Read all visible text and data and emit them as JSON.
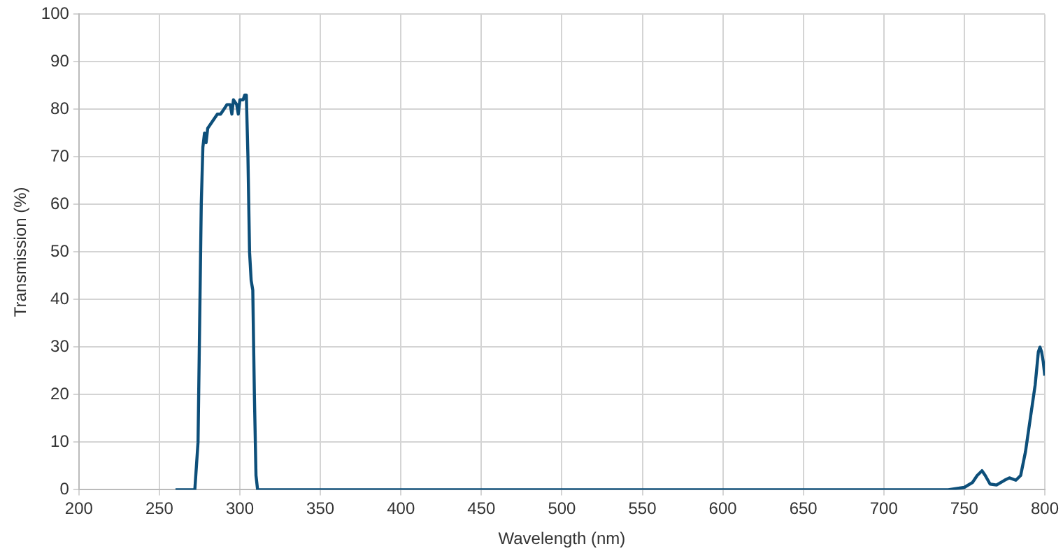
{
  "chart_data": {
    "type": "line",
    "xlabel": "Wavelength (nm)",
    "ylabel": "Transmission (%)",
    "series": [
      {
        "color": "#0d4f7a",
        "x": [
          260,
          272,
          274,
          276,
          277,
          278,
          279,
          280,
          282,
          284,
          286,
          288,
          290,
          292,
          294,
          295,
          296,
          298,
          299,
          300,
          302,
          303,
          304,
          305,
          306,
          307,
          308,
          309,
          310,
          311,
          350,
          400,
          450,
          500,
          550,
          600,
          650,
          700,
          740,
          750,
          755,
          758,
          761,
          763,
          766,
          770,
          775,
          778,
          782,
          785,
          788,
          791,
          794,
          796,
          797,
          798,
          799,
          800
        ],
        "values": [
          0,
          0,
          10,
          60,
          72,
          75,
          73,
          76,
          77,
          78,
          79,
          79,
          80,
          81,
          81,
          79,
          82,
          81,
          79,
          82,
          82,
          83,
          83,
          70,
          50,
          44,
          42,
          20,
          3,
          0,
          0,
          0,
          0,
          0,
          0,
          0,
          0,
          0,
          0,
          0.5,
          1.5,
          3,
          4,
          3,
          1.2,
          1,
          2,
          2.5,
          2,
          3,
          8,
          15,
          22,
          29,
          30,
          29,
          27,
          24
        ]
      }
    ],
    "xlim": [
      200,
      800
    ],
    "xticks": [
      200,
      250,
      300,
      350,
      400,
      450,
      500,
      550,
      600,
      650,
      700,
      750,
      800
    ],
    "ylim": [
      0,
      100
    ],
    "yticks": [
      0,
      10,
      20,
      30,
      40,
      50,
      60,
      70,
      80,
      90,
      100
    ],
    "grid": true,
    "legend": false,
    "marker": "none",
    "line_style": "solid"
  }
}
